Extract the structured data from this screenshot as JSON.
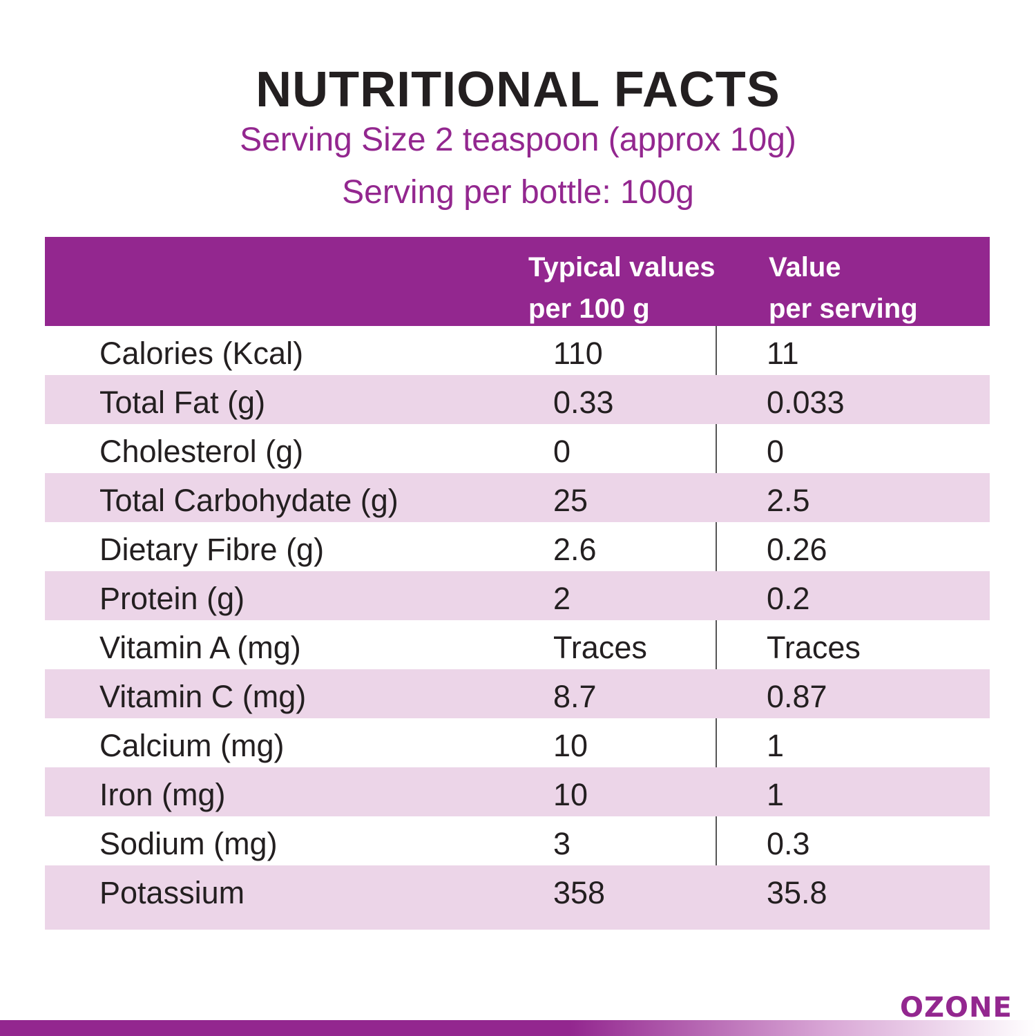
{
  "header": {
    "title": "NUTRITIONAL FACTS",
    "serving_size": "Serving Size 2 teaspoon (approx 10g)",
    "serving_per_bottle": "Serving per bottle: 100g"
  },
  "table": {
    "columns": {
      "per100_line1": "Typical values",
      "per100_line2": "per 100 g",
      "serving_line1": "Value",
      "serving_line2": "per serving"
    },
    "rows": [
      {
        "name": "Calories (Kcal)",
        "per100": "110",
        "serving": "11"
      },
      {
        "name": "Total Fat (g)",
        "per100": "0.33",
        "serving": "0.033"
      },
      {
        "name": "Cholesterol (g)",
        "per100": "0",
        "serving": "0"
      },
      {
        "name": "Total Carbohydate (g)",
        "per100": "25",
        "serving": "2.5"
      },
      {
        "name": "Dietary Fibre (g)",
        "per100": "2.6",
        "serving": "0.26"
      },
      {
        "name": "Protein (g)",
        "per100": "2",
        "serving": "0.2"
      },
      {
        "name": "Vitamin A (mg)",
        "per100": "Traces",
        "serving": "Traces"
      },
      {
        "name": "Vitamin C (mg)",
        "per100": "8.7",
        "serving": "0.87"
      },
      {
        "name": "Calcium (mg)",
        "per100": "10",
        "serving": "1"
      },
      {
        "name": "Iron (mg)",
        "per100": "10",
        "serving": "1"
      },
      {
        "name": "Sodium (mg)",
        "per100": "3",
        "serving": "0.3"
      },
      {
        "name": "Potassium",
        "per100": "358",
        "serving": "35.8"
      }
    ]
  },
  "brand": {
    "logo_text": "OZONE"
  },
  "colors": {
    "accent": "#93278f",
    "row_alt": "#ecd5e8",
    "text": "#231f20"
  }
}
